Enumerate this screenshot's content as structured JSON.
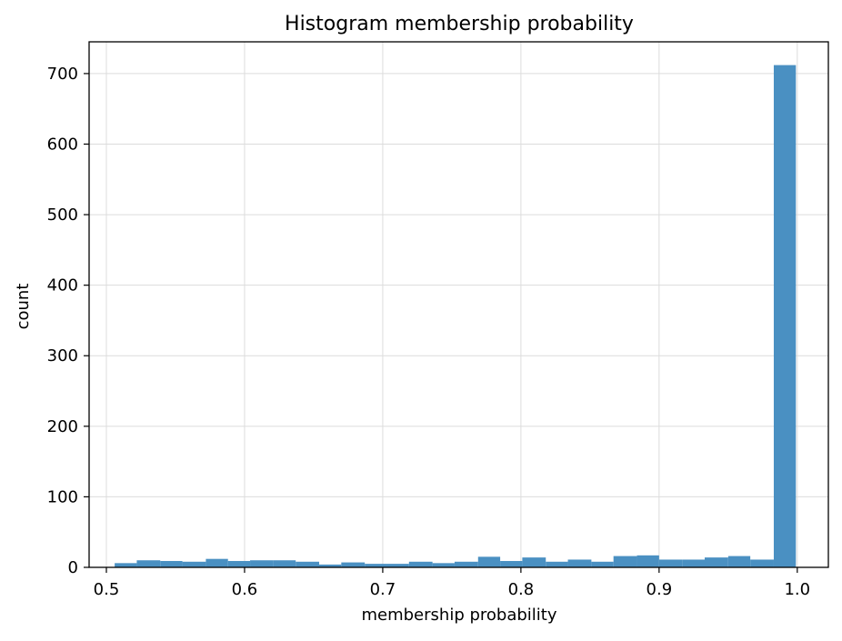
{
  "chart_data": {
    "type": "bar",
    "title": "Histogram membership probability",
    "xlabel": "membership probability",
    "ylabel": "count",
    "xlim": [
      0.4875,
      1.0225
    ],
    "ylim": [
      0,
      745
    ],
    "x_ticks": [
      0.5,
      0.6,
      0.7,
      0.8,
      0.9,
      1.0
    ],
    "x_tick_labels": [
      "0.5",
      "0.6",
      "0.7",
      "0.8",
      "0.9",
      "1.0"
    ],
    "y_ticks": [
      0,
      100,
      200,
      300,
      400,
      500,
      600,
      700
    ],
    "y_tick_labels": [
      "0",
      "100",
      "200",
      "300",
      "400",
      "500",
      "600",
      "700"
    ],
    "grid": true,
    "legend": "none",
    "bar_color": "#4a90c2",
    "bins": [
      {
        "x0": 0.506,
        "x1": 0.522,
        "count": 6
      },
      {
        "x0": 0.522,
        "x1": 0.539,
        "count": 10
      },
      {
        "x0": 0.539,
        "x1": 0.555,
        "count": 9
      },
      {
        "x0": 0.555,
        "x1": 0.572,
        "count": 8
      },
      {
        "x0": 0.572,
        "x1": 0.588,
        "count": 12
      },
      {
        "x0": 0.588,
        "x1": 0.604,
        "count": 9
      },
      {
        "x0": 0.604,
        "x1": 0.621,
        "count": 10
      },
      {
        "x0": 0.621,
        "x1": 0.637,
        "count": 10
      },
      {
        "x0": 0.637,
        "x1": 0.654,
        "count": 8
      },
      {
        "x0": 0.654,
        "x1": 0.67,
        "count": 4
      },
      {
        "x0": 0.67,
        "x1": 0.687,
        "count": 7
      },
      {
        "x0": 0.687,
        "x1": 0.703,
        "count": 5
      },
      {
        "x0": 0.703,
        "x1": 0.719,
        "count": 5
      },
      {
        "x0": 0.719,
        "x1": 0.736,
        "count": 8
      },
      {
        "x0": 0.736,
        "x1": 0.752,
        "count": 6
      },
      {
        "x0": 0.752,
        "x1": 0.769,
        "count": 8
      },
      {
        "x0": 0.769,
        "x1": 0.785,
        "count": 15
      },
      {
        "x0": 0.785,
        "x1": 0.801,
        "count": 9
      },
      {
        "x0": 0.801,
        "x1": 0.818,
        "count": 14
      },
      {
        "x0": 0.818,
        "x1": 0.834,
        "count": 8
      },
      {
        "x0": 0.834,
        "x1": 0.851,
        "count": 11
      },
      {
        "x0": 0.851,
        "x1": 0.867,
        "count": 8
      },
      {
        "x0": 0.867,
        "x1": 0.884,
        "count": 16
      },
      {
        "x0": 0.884,
        "x1": 0.9,
        "count": 17
      },
      {
        "x0": 0.9,
        "x1": 0.917,
        "count": 11
      },
      {
        "x0": 0.917,
        "x1": 0.933,
        "count": 11
      },
      {
        "x0": 0.933,
        "x1": 0.95,
        "count": 14
      },
      {
        "x0": 0.95,
        "x1": 0.966,
        "count": 16
      },
      {
        "x0": 0.966,
        "x1": 0.983,
        "count": 11
      },
      {
        "x0": 0.983,
        "x1": 0.999,
        "count": 712
      }
    ]
  }
}
